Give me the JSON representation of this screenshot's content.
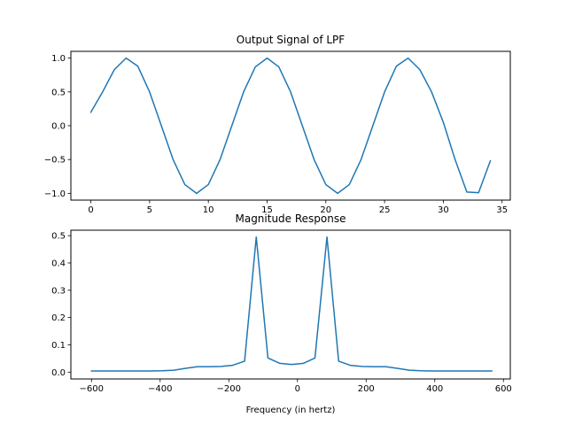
{
  "chart_data": [
    {
      "type": "line",
      "title": "Output Signal of LPF",
      "xlabel": "",
      "ylabel": "",
      "xlim": [
        -1.7,
        35.7
      ],
      "ylim": [
        -1.1,
        1.1
      ],
      "xticks": [
        0,
        5,
        10,
        15,
        20,
        25,
        30,
        35
      ],
      "xtick_labels": [
        "0",
        "5",
        "10",
        "15",
        "20",
        "25",
        "30",
        "35"
      ],
      "yticks": [
        -1.0,
        -0.5,
        0.0,
        0.5,
        1.0
      ],
      "ytick_labels": [
        "−1.0",
        "−0.5",
        "0.0",
        "0.5",
        "1.0"
      ],
      "grid": false,
      "series": [
        {
          "color": "#1f77b4",
          "x": [
            0,
            1,
            2,
            3,
            4,
            5,
            6,
            7,
            8,
            9,
            10,
            11,
            12,
            13,
            14,
            15,
            16,
            17,
            18,
            19,
            20,
            21,
            22,
            23,
            24,
            25,
            26,
            27,
            28,
            29,
            30,
            31,
            32,
            33,
            34
          ],
          "y": [
            0.2,
            0.5,
            0.83,
            1.0,
            0.88,
            0.5,
            0.0,
            -0.5,
            -0.87,
            -1.0,
            -0.87,
            -0.5,
            0.0,
            0.5,
            0.87,
            1.0,
            0.87,
            0.5,
            0.0,
            -0.5,
            -0.87,
            -1.0,
            -0.87,
            -0.5,
            0.0,
            0.5,
            0.88,
            1.0,
            0.83,
            0.5,
            0.05,
            -0.5,
            -0.98,
            -0.99,
            -0.52
          ]
        }
      ]
    },
    {
      "type": "line",
      "title": "Magnitude Response",
      "xlabel": "Frequency (in hertz)",
      "ylabel": "",
      "xlim": [
        -660,
        620
      ],
      "ylim": [
        -0.025,
        0.52
      ],
      "xticks": [
        -600,
        -400,
        -200,
        0,
        200,
        400,
        600
      ],
      "xtick_labels": [
        "−600",
        "−400",
        "−200",
        "0",
        "200",
        "400",
        "600"
      ],
      "yticks": [
        0.0,
        0.1,
        0.2,
        0.3,
        0.4,
        0.5
      ],
      "ytick_labels": [
        "0.0",
        "0.1",
        "0.2",
        "0.3",
        "0.4",
        "0.5"
      ],
      "grid": false,
      "series": [
        {
          "color": "#1f77b4",
          "x": [
            -600,
            -566,
            -531,
            -497,
            -463,
            -429,
            -394,
            -360,
            -326,
            -291,
            -257,
            -223,
            -189,
            -154,
            -120,
            -86,
            -51,
            -17,
            17,
            51,
            86,
            120,
            154,
            189,
            223,
            257,
            291,
            326,
            360,
            394,
            429,
            463,
            497,
            531,
            566
          ],
          "y": [
            0.004,
            0.004,
            0.004,
            0.004,
            0.004,
            0.004,
            0.005,
            0.007,
            0.014,
            0.02,
            0.02,
            0.021,
            0.025,
            0.04,
            0.495,
            0.052,
            0.032,
            0.028,
            0.032,
            0.052,
            0.495,
            0.04,
            0.025,
            0.021,
            0.02,
            0.02,
            0.014,
            0.007,
            0.005,
            0.004,
            0.004,
            0.004,
            0.004,
            0.004,
            0.004
          ]
        }
      ]
    }
  ]
}
